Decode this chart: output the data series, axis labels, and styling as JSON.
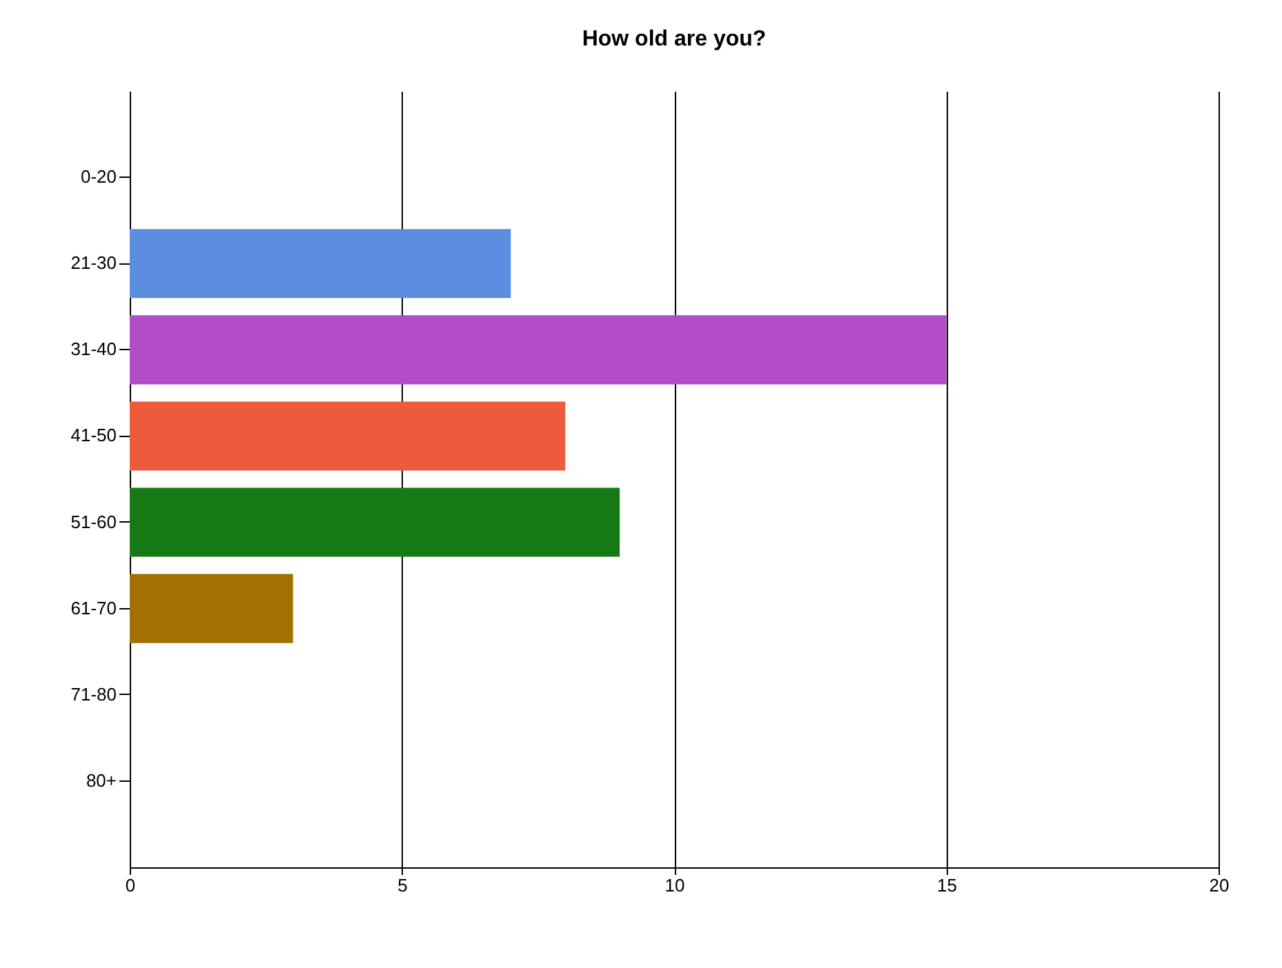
{
  "chart_data": {
    "type": "bar",
    "orientation": "horizontal",
    "title": "How old are you?",
    "categories": [
      "0-20",
      "21-30",
      "31-40",
      "41-50",
      "51-60",
      "61-70",
      "71-80",
      "80+"
    ],
    "values": [
      0,
      7,
      15,
      8,
      9,
      3,
      0,
      0
    ],
    "colors": [
      "#5b8de0",
      "#5b8de0",
      "#b04cc8",
      "#ee5a3c",
      "#157a15",
      "#a07000",
      "#5b8de0",
      "#5b8de0"
    ],
    "xlim": [
      0,
      20
    ],
    "xticks": [
      0,
      5,
      10,
      15,
      20
    ],
    "grid": "x"
  }
}
